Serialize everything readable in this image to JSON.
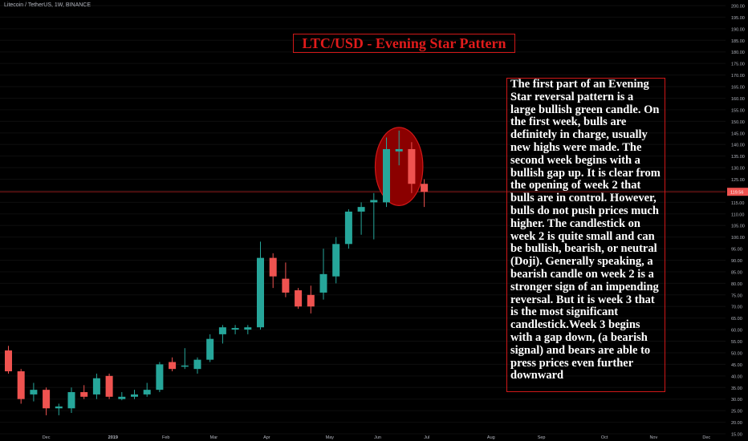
{
  "header": {
    "symbol": "Litecoin / TetherUS, 1W, BINANCE"
  },
  "title": "LTC/USD - Evening Star Pattern",
  "annotation": "The first part of an Evening Star reversal pattern is a large bullish green candle. On the first week, bulls are definitely in charge, usually new highs were made. The second week begins with a bullish gap up. It is clear from the opening of week 2 that bulls are in control. However, bulls do not push prices much higher. The candlestick on week 2 is quite small and can be bullish, bearish, or neutral (Doji). Generally speaking, a bearish candle on week 2 is a stronger sign of an impending reversal. But it is week 3 that is the most significant candlestick.Week 3 begins with a gap down, (a bearish signal) and bears are able to press prices even further downward",
  "colors": {
    "up": "#26a69a",
    "down": "#ef5350",
    "accent": "#d01818",
    "text": "#b2b5be",
    "background": "#000000"
  },
  "chart_data": {
    "type": "candlestick",
    "title": "LTC/USD - Evening Star Pattern",
    "ylim": [
      15,
      200
    ],
    "y_ticks": [
      15,
      20,
      25,
      30,
      35,
      40,
      45,
      50,
      55,
      60,
      65,
      70,
      75,
      80,
      85,
      90,
      95,
      100,
      105,
      110,
      115,
      120,
      125,
      130,
      135,
      140,
      145,
      150,
      155,
      160,
      165,
      170,
      175,
      180,
      185,
      190,
      195,
      200
    ],
    "y_tick_labels": [
      "15.00",
      "20.00",
      "25.00",
      "30.00",
      "35.00",
      "40.00",
      "45.00",
      "50.00",
      "55.00",
      "60.00",
      "65.00",
      "70.00",
      "75.00",
      "80.00",
      "85.00",
      "90.00",
      "95.00",
      "100.00",
      "105.00",
      "110.00",
      "115.00",
      "120.00",
      "125.00",
      "130.00",
      "135.00",
      "140.00",
      "145.00",
      "150.00",
      "155.00",
      "160.00",
      "165.00",
      "170.00",
      "175.00",
      "180.00",
      "185.00",
      "190.00",
      "195.00",
      "200.00"
    ],
    "x_labels": [
      {
        "label": "Dec",
        "week": 3
      },
      {
        "label": "2019",
        "week": 8.3
      },
      {
        "label": "Feb",
        "week": 12.5
      },
      {
        "label": "Mar",
        "week": 16.3
      },
      {
        "label": "Apr",
        "week": 20.5
      },
      {
        "label": "May",
        "week": 25.5
      },
      {
        "label": "Jun",
        "week": 29.3
      },
      {
        "label": "Jul",
        "week": 33.2
      },
      {
        "label": "Aug",
        "week": 38.3
      },
      {
        "label": "Sep",
        "week": 42.3
      },
      {
        "label": "Oct",
        "week": 47.3
      },
      {
        "label": "Nov",
        "week": 51.2
      },
      {
        "label": "Dec",
        "week": 55.4
      }
    ],
    "last_price": 119.56,
    "last_price_label": "119.56",
    "pattern_highlight": {
      "week_from": 30,
      "week_to": 32
    },
    "candles": [
      {
        "open": 51,
        "high": 53,
        "low": 41,
        "close": 42
      },
      {
        "open": 42,
        "high": 43,
        "low": 28,
        "close": 30
      },
      {
        "open": 32,
        "high": 37,
        "low": 29,
        "close": 34
      },
      {
        "open": 34,
        "high": 35,
        "low": 23,
        "close": 26
      },
      {
        "open": 26,
        "high": 28,
        "low": 23,
        "close": 26.8
      },
      {
        "open": 26,
        "high": 35,
        "low": 24,
        "close": 33
      },
      {
        "open": 33,
        "high": 36,
        "low": 30,
        "close": 31
      },
      {
        "open": 32,
        "high": 41,
        "low": 30,
        "close": 39
      },
      {
        "open": 40,
        "high": 41,
        "low": 30,
        "close": 31
      },
      {
        "open": 30,
        "high": 33,
        "low": 29.5,
        "close": 31
      },
      {
        "open": 31,
        "high": 34,
        "low": 30,
        "close": 32
      },
      {
        "open": 32,
        "high": 37,
        "low": 31,
        "close": 34
      },
      {
        "open": 34,
        "high": 46,
        "low": 33,
        "close": 45
      },
      {
        "open": 46,
        "high": 48,
        "low": 42,
        "close": 43
      },
      {
        "open": 44,
        "high": 52,
        "low": 43,
        "close": 44.5
      },
      {
        "open": 43,
        "high": 48,
        "low": 41,
        "close": 47
      },
      {
        "open": 47,
        "high": 58,
        "low": 46,
        "close": 56
      },
      {
        "open": 58,
        "high": 62,
        "low": 54,
        "close": 61
      },
      {
        "open": 60,
        "high": 62,
        "low": 58,
        "close": 60.7
      },
      {
        "open": 60,
        "high": 62,
        "low": 58,
        "close": 61
      },
      {
        "open": 61,
        "high": 98,
        "low": 60,
        "close": 91
      },
      {
        "open": 91,
        "high": 93,
        "low": 78,
        "close": 83
      },
      {
        "open": 82,
        "high": 89,
        "low": 74,
        "close": 76
      },
      {
        "open": 77,
        "high": 78,
        "low": 69,
        "close": 70
      },
      {
        "open": 75,
        "high": 79,
        "low": 67,
        "close": 70
      },
      {
        "open": 76,
        "high": 95,
        "low": 73,
        "close": 84
      },
      {
        "open": 83,
        "high": 100,
        "low": 80,
        "close": 97
      },
      {
        "open": 97,
        "high": 112,
        "low": 95,
        "close": 111
      },
      {
        "open": 111,
        "high": 115,
        "low": 101,
        "close": 113
      },
      {
        "open": 115,
        "high": 119,
        "low": 99,
        "close": 116
      },
      {
        "open": 115,
        "high": 143,
        "low": 113,
        "close": 138
      },
      {
        "open": 137,
        "high": 146,
        "low": 131,
        "close": 138
      },
      {
        "open": 138,
        "high": 141,
        "low": 119,
        "close": 123
      },
      {
        "open": 123,
        "high": 125,
        "low": 113,
        "close": 119.56
      }
    ]
  }
}
